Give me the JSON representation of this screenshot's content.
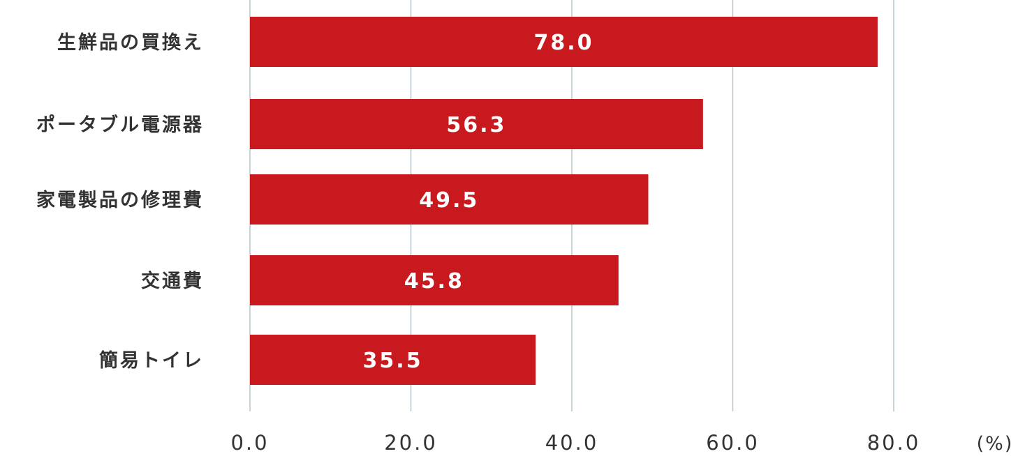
{
  "chart_data": {
    "type": "bar",
    "orientation": "horizontal",
    "categories": [
      "生鮮品の買換え",
      "ポータブル電源器",
      "家電製品の修理費",
      "交通費",
      "簡易トイレ"
    ],
    "values": [
      78.0,
      56.3,
      49.5,
      45.8,
      35.5
    ],
    "value_labels": [
      "78.0",
      "56.3",
      "49.5",
      "45.8",
      "35.5"
    ],
    "xlim": [
      0,
      80
    ],
    "ticks": [
      0,
      20,
      40,
      60,
      80
    ],
    "tick_labels": [
      "0.0",
      "20.0",
      "40.0",
      "60.0",
      "80.0"
    ],
    "unit": "(%)",
    "grid": true,
    "bar_color": "#c8191e",
    "grid_color": "#b9c6cc"
  }
}
